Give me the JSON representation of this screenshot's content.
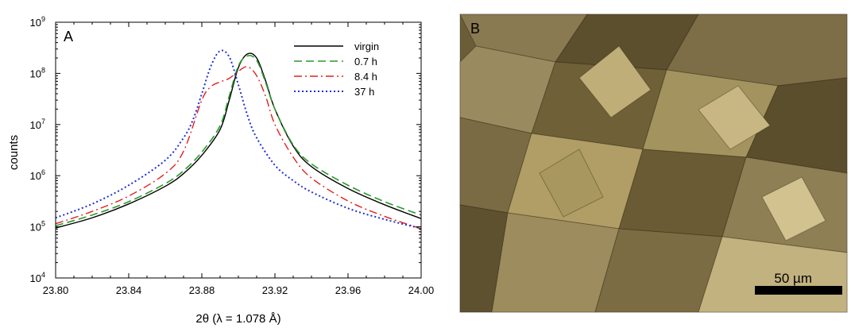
{
  "chart_data": {
    "type": "line",
    "panel_label": "A",
    "xlabel": "2θ  (λ = 1.078 Å)",
    "ylabel": "counts",
    "xlim": [
      23.8,
      24.0
    ],
    "ylim": [
      10000,
      1000000000
    ],
    "yscale": "log",
    "x_ticks": [
      "23.80",
      "23.84",
      "23.88",
      "23.92",
      "23.96",
      "24.00"
    ],
    "y_ticks": [
      {
        "base": "10",
        "exp": "4"
      },
      {
        "base": "10",
        "exp": "5"
      },
      {
        "base": "10",
        "exp": "6"
      },
      {
        "base": "10",
        "exp": "7"
      },
      {
        "base": "10",
        "exp": "8"
      },
      {
        "base": "10",
        "exp": "9"
      }
    ],
    "legend_position": "top-right",
    "grid": false,
    "series": [
      {
        "name": "virgin",
        "color": "#000000",
        "dash": "solid",
        "x": [
          23.8,
          23.82,
          23.84,
          23.86,
          23.87,
          23.88,
          23.89,
          23.895,
          23.9,
          23.905,
          23.91,
          23.915,
          23.92,
          23.93,
          23.94,
          23.96,
          23.98,
          24.0
        ],
        "y": [
          95000,
          150000,
          280000,
          620000,
          1100000,
          2500000,
          8000000,
          30000000,
          130000000,
          240000000,
          200000000,
          70000000,
          20000000,
          3800000,
          1500000,
          560000,
          270000,
          145000
        ]
      },
      {
        "name": "0.7 h",
        "color": "#2a9a2a",
        "dash": "dash",
        "x": [
          23.8,
          23.82,
          23.84,
          23.86,
          23.87,
          23.88,
          23.89,
          23.895,
          23.9,
          23.905,
          23.91,
          23.915,
          23.92,
          23.93,
          23.94,
          23.96,
          23.98,
          24.0
        ],
        "y": [
          105000,
          170000,
          310000,
          700000,
          1250000,
          2900000,
          9500000,
          36000000,
          140000000,
          220000000,
          180000000,
          65000000,
          20000000,
          4000000,
          1700000,
          650000,
          310000,
          170000
        ]
      },
      {
        "name": "8.4 h",
        "color": "#e02020",
        "dash": "dashdot",
        "x": [
          23.8,
          23.82,
          23.84,
          23.86,
          23.87,
          23.88,
          23.885,
          23.89,
          23.895,
          23.9,
          23.905,
          23.91,
          23.915,
          23.92,
          23.93,
          23.94,
          23.96,
          23.98,
          24.0
        ],
        "y": [
          115000,
          200000,
          400000,
          1100000,
          3000000,
          30000000,
          55000000,
          68000000,
          80000000,
          110000000,
          135000000,
          90000000,
          35000000,
          10000000,
          2300000,
          900000,
          320000,
          160000,
          92000
        ]
      },
      {
        "name": "37 h",
        "color": "#2030d0",
        "dash": "dot",
        "x": [
          23.8,
          23.82,
          23.84,
          23.86,
          23.87,
          23.875,
          23.88,
          23.885,
          23.89,
          23.895,
          23.9,
          23.905,
          23.91,
          23.92,
          23.93,
          23.94,
          23.96,
          23.98,
          24.0
        ],
        "y": [
          150000,
          280000,
          650000,
          2000000,
          5500000,
          12000000,
          40000000,
          140000000,
          275000000,
          210000000,
          60000000,
          15000000,
          5500000,
          1600000,
          800000,
          480000,
          230000,
          140000,
          93000
        ]
      }
    ]
  },
  "photo": {
    "panel_label": "B",
    "scale_label": "50 µm",
    "base_color": "#6e5f3a"
  }
}
